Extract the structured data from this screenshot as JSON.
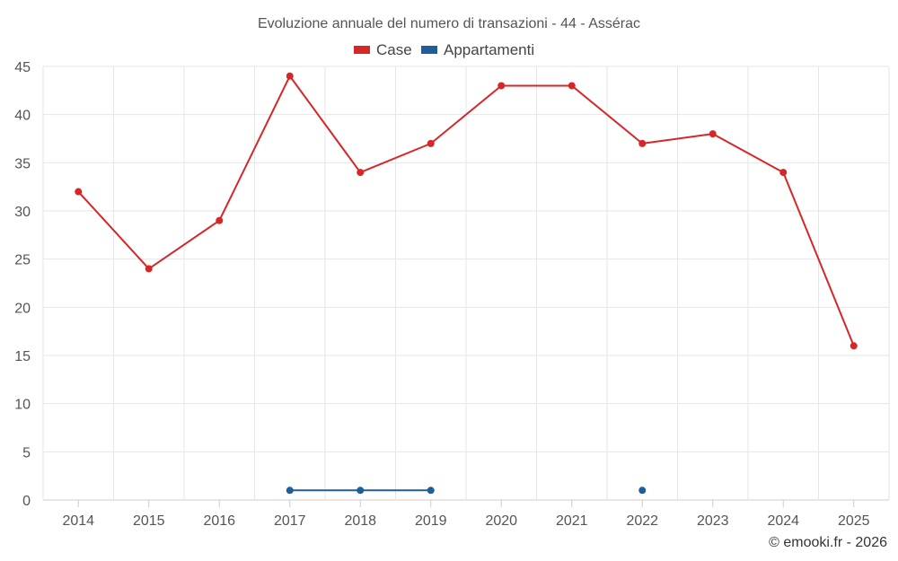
{
  "chart_data": {
    "type": "line",
    "title": "Evoluzione annuale del numero di transazioni - 44 - Assérac",
    "categories": [
      "2014",
      "2015",
      "2016",
      "2017",
      "2018",
      "2019",
      "2020",
      "2021",
      "2022",
      "2023",
      "2024",
      "2025"
    ],
    "ylim": [
      0,
      45
    ],
    "yticks": [
      0,
      5,
      10,
      15,
      20,
      25,
      30,
      35,
      40,
      45
    ],
    "grid": true,
    "legend_position": "top-center",
    "series": [
      {
        "name": "Case",
        "color": "#d62728",
        "values": [
          32,
          24,
          29,
          44,
          34,
          37,
          43,
          43,
          37,
          38,
          34,
          16
        ]
      },
      {
        "name": "Appartamenti",
        "color": "#1f5f99",
        "values": [
          null,
          null,
          null,
          1,
          1,
          1,
          null,
          null,
          1,
          null,
          null,
          null
        ]
      }
    ],
    "credit": "© emooki.fr - 2026"
  }
}
